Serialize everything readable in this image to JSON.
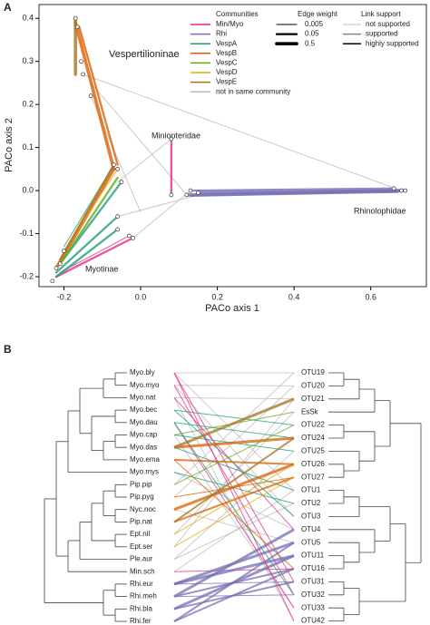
{
  "chart_data": [
    {
      "type": "network",
      "panel_label": "A",
      "x_label": "PACo axis 1",
      "y_label": "PACo axis 2",
      "xlim": [
        -0.265,
        0.745
      ],
      "ylim": [
        -0.223,
        0.432
      ],
      "xticks": [
        -0.2,
        {
          "value": 0,
          "label": "0.0"
        },
        0.2,
        0.4,
        0.6
      ],
      "yticks": [
        -0.2,
        -0.1,
        {
          "value": 0,
          "label": "0.0"
        },
        0.1,
        0.2,
        0.3,
        0.4
      ],
      "annotations": [
        "Vespertilioninae",
        "Miniopteridae",
        "Rhinolophidae",
        "Myotinae"
      ],
      "legend_title": "Communities",
      "series": [
        {
          "name": "Min/Myo",
          "color": "#e7298a",
          "x": [
            [
              0.08,
              0.08
            ],
            [
              -0.02,
              -0.22
            ],
            [
              -0.03,
              -0.21
            ]
          ],
          "y": [
            [
              0.12,
              -0.01
            ],
            [
              -0.11,
              -0.2
            ],
            [
              -0.105,
              -0.19
            ]
          ],
          "weights": [
            0.05,
            0.05,
            0.005
          ]
        },
        {
          "name": "Rhi",
          "color": "#7570b3",
          "x": [
            [
              0.12,
              0.68
            ],
            [
              0.15,
              0.69
            ],
            [
              0.13,
              0.66
            ],
            [
              0.13,
              0.67
            ]
          ],
          "y": [
            [
              -0.01,
              0.0
            ],
            [
              -0.005,
              0.0
            ],
            [
              0.0,
              0.005
            ],
            [
              -0.012,
              -0.003
            ]
          ],
          "weights": [
            0.5,
            0.5,
            0.05,
            0.05
          ]
        },
        {
          "name": "VespA",
          "color": "#1b9e77",
          "x": [
            [
              -0.06,
              -0.22
            ],
            [
              -0.06,
              -0.22
            ],
            [
              -0.05,
              -0.21
            ],
            [
              -0.07,
              -0.2
            ]
          ],
          "y": [
            [
              -0.06,
              -0.19
            ],
            [
              -0.09,
              -0.2
            ],
            [
              0.02,
              -0.17
            ],
            [
              0.06,
              -0.13
            ]
          ],
          "weights": [
            0.05,
            0.05,
            0.05,
            0.005
          ]
        },
        {
          "name": "VespB",
          "color": "#d95f02",
          "x": [
            [
              -0.17,
              -0.07
            ],
            [
              -0.07,
              -0.22
            ],
            [
              -0.16,
              -0.06
            ]
          ],
          "y": [
            [
              0.39,
              0.05
            ],
            [
              0.05,
              -0.18
            ],
            [
              0.38,
              0.06
            ]
          ],
          "weights": [
            0.5,
            0.5,
            0.05
          ]
        },
        {
          "name": "VespC",
          "color": "#66a61e",
          "x": [
            [
              -0.06,
              -0.21
            ]
          ],
          "y": [
            [
              0.03,
              -0.17
            ]
          ],
          "weights": [
            0.05
          ]
        },
        {
          "name": "VespD",
          "color": "#e6ab02",
          "x": [
            [
              -0.06,
              -0.2
            ]
          ],
          "y": [
            [
              0.05,
              -0.14
            ]
          ],
          "weights": [
            0.005
          ]
        },
        {
          "name": "VespE",
          "color": "#a6761d",
          "x": [
            [
              -0.17,
              -0.17
            ],
            [
              -0.07,
              -0.21
            ]
          ],
          "y": [
            [
              0.4,
              0.27
            ],
            [
              0.06,
              -0.16
            ]
          ],
          "weights": [
            0.5,
            0.05
          ]
        },
        {
          "name": "not in same community",
          "color": "#bbbbbb",
          "x": [
            [
              -0.13,
              0.12
            ],
            [
              -0.15,
              0.68
            ],
            [
              -0.06,
              0.15
            ],
            [
              -0.02,
              0.13
            ],
            [
              -0.13,
              0.0
            ],
            [
              -0.06,
              0.08
            ]
          ],
          "y": [
            [
              0.25,
              -0.01
            ],
            [
              0.27,
              0.0
            ],
            [
              -0.06,
              -0.01
            ],
            [
              -0.11,
              0.0
            ],
            [
              0.22,
              -0.05
            ],
            [
              0.02,
              0.12
            ]
          ],
          "weights": [
            0.005,
            0.005,
            0.005,
            0.005,
            0.005,
            0.005
          ]
        }
      ],
      "nodes": {
        "x": [
          -0.17,
          -0.165,
          -0.155,
          -0.15,
          -0.13,
          -0.07,
          -0.06,
          -0.05,
          -0.06,
          -0.06,
          -0.22,
          -0.21,
          -0.2,
          -0.23,
          -0.02,
          -0.03,
          0.08,
          0.08,
          0.12,
          0.13,
          0.15,
          0.66,
          0.68,
          0.69
        ],
        "y": [
          0.4,
          0.38,
          0.3,
          0.27,
          0.22,
          0.06,
          0.05,
          0.02,
          -0.06,
          -0.09,
          -0.18,
          -0.17,
          -0.14,
          -0.21,
          -0.11,
          -0.105,
          0.12,
          -0.01,
          -0.01,
          0.0,
          -0.005,
          0.005,
          0.0,
          0.0
        ]
      },
      "edge_weight": {
        "title": "Edge weight",
        "values": [
          0.005,
          0.05,
          0.5
        ]
      },
      "link_support": {
        "title": "Link support",
        "levels": [
          {
            "name": "not supported",
            "color": "#d3d3d3"
          },
          {
            "name": "supported",
            "color": "#888888"
          },
          {
            "name": "highly supported",
            "color": "#000000"
          }
        ]
      }
    },
    {
      "type": "tanglegram",
      "panel_label": "B",
      "hosts": [
        "Myo.bly",
        "Myo.myo",
        "Myo.nat",
        "Myo.bec",
        "Myo.dau",
        "Myo.cap",
        "Myo.das",
        "Myo.ema",
        "Myo.mys",
        "Pip.pip",
        "Pip.pyg",
        "Nyc.noc",
        "Pip.nat",
        "Ept.nil",
        "Ept.ser",
        "Ple.aur",
        "Min.sch",
        "Rhi.eur",
        "Rhi.meh",
        "Rhi.bla",
        "Rhi.fer"
      ],
      "symbionts": [
        "OTU19",
        "OTU20",
        "OTU21",
        "EsSk",
        "OTU22",
        "OTU24",
        "OTU25",
        "OTU26",
        "OTU27",
        "OTU1",
        "OTU2",
        "OTU3",
        "OTU4",
        "OTU5",
        "OTU11",
        "OTU16",
        "OTU31",
        "OTU32",
        "OTU33",
        "OTU42"
      ]
    }
  ]
}
